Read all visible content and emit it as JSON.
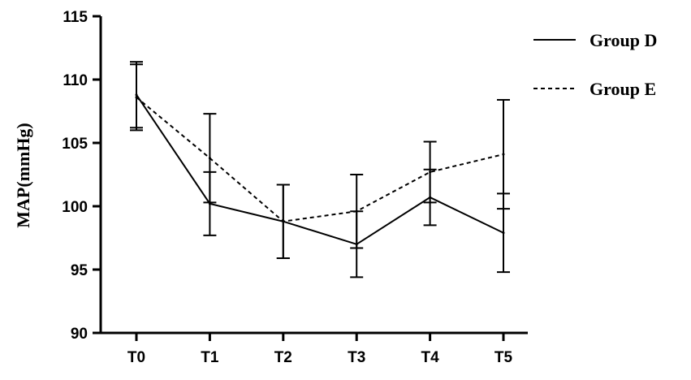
{
  "chart_data": {
    "type": "line",
    "categories": [
      "T0",
      "T1",
      "T2",
      "T3",
      "T4",
      "T5"
    ],
    "series": [
      {
        "name": "Group D",
        "values": [
          108.8,
          100.2,
          98.8,
          97.0,
          100.7,
          97.9
        ],
        "error": [
          2.6,
          2.5,
          2.9,
          2.6,
          2.2,
          3.1
        ],
        "style": "solid"
      },
      {
        "name": "Group E",
        "values": [
          108.6,
          103.8,
          98.8,
          99.6,
          102.7,
          104.1
        ],
        "error": [
          2.6,
          3.5,
          2.9,
          2.9,
          2.4,
          4.3
        ],
        "style": "dashed"
      }
    ],
    "xlabel": "",
    "ylabel": "MAP(mmHg)",
    "ylim": [
      90,
      115
    ],
    "yticks": [
      90,
      95,
      100,
      105,
      110,
      115
    ],
    "grid": false,
    "legend_position": "top-right",
    "colors": {
      "line": "#000000",
      "background": "#ffffff"
    }
  }
}
